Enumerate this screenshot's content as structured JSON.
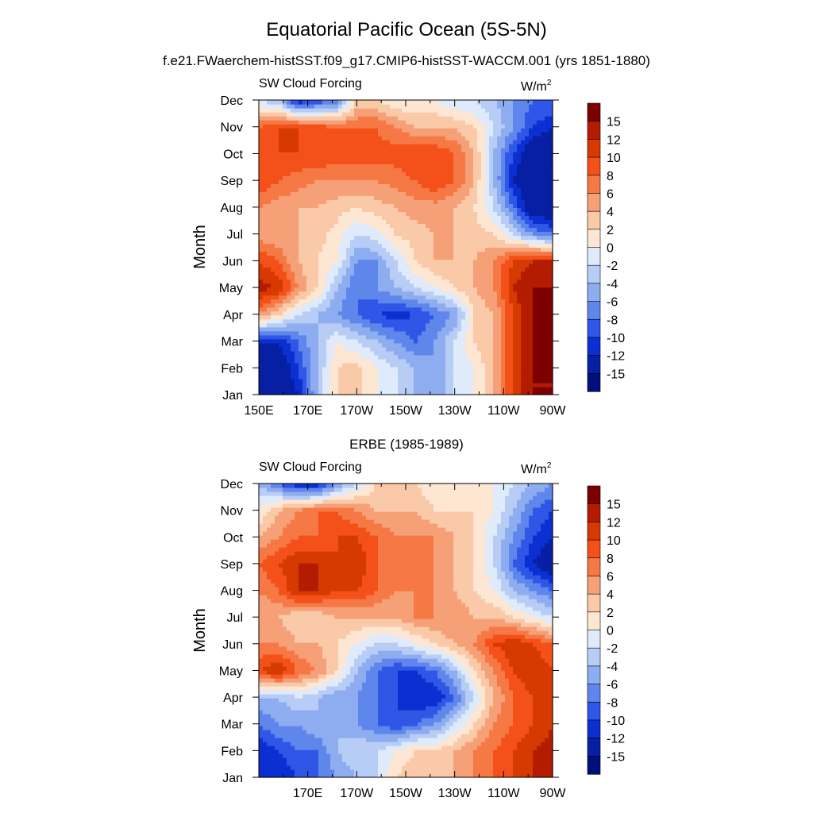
{
  "figure": {
    "title": "Equatorial Pacific Ocean (5S-5N)",
    "subtitle": "f.e21.FWaerchem-histSST.f09_g17.CMIP6-histSST-WACCM.001 (yrs 1851-1880)"
  },
  "colorbar": {
    "labels": [
      "15",
      "12",
      "10",
      "8",
      "6",
      "4",
      "2",
      "0",
      "-2",
      "-4",
      "-6",
      "-8",
      "-10",
      "-12",
      "-15"
    ],
    "colors": [
      "#7d0000",
      "#b31c00",
      "#d73a00",
      "#f4501a",
      "#f57845",
      "#f6a078",
      "#f9c9a8",
      "#fde6d2",
      "#dfeafb",
      "#b8cdf6",
      "#8eacf0",
      "#5f86eb",
      "#2f56e6",
      "#0b2fd0",
      "#061fa3",
      "#000f7a"
    ]
  },
  "chart_data": [
    {
      "type": "heatmap",
      "title": "",
      "panel_label": "SW Cloud Forcing",
      "units": "W/m",
      "units_sup": "2",
      "ylabel": "Month",
      "x_ticks": [
        "150E",
        "170E",
        "170W",
        "150W",
        "130W",
        "110W",
        "90W"
      ],
      "x_values": [
        150,
        170,
        190,
        210,
        230,
        250,
        270
      ],
      "xlim": [
        150,
        270
      ],
      "y_ticks": [
        "Jan",
        "Feb",
        "Mar",
        "Apr",
        "May",
        "Jun",
        "Jul",
        "Aug",
        "Sep",
        "Oct",
        "Nov",
        "Dec"
      ],
      "z": [
        [
          -15,
          -15,
          -12,
          -4,
          2,
          3,
          0,
          -2,
          -4,
          -6,
          -2,
          0,
          4,
          10,
          15,
          15
        ],
        [
          -15,
          -15,
          -10,
          -4,
          2,
          3,
          0,
          -2,
          -4,
          -6,
          -2,
          0,
          4,
          10,
          15,
          15
        ],
        [
          -12,
          -12,
          -8,
          -4,
          0,
          -2,
          -4,
          -6,
          -8,
          -6,
          -2,
          2,
          4,
          10,
          15,
          15
        ],
        [
          6,
          2,
          -2,
          -4,
          -6,
          -8,
          -10,
          -11,
          -10,
          -8,
          -6,
          2,
          4,
          10,
          15,
          15
        ],
        [
          13,
          12,
          6,
          2,
          -4,
          -8,
          -6,
          -4,
          -2,
          0,
          2,
          4,
          6,
          12,
          15,
          15
        ],
        [
          10,
          8,
          4,
          2,
          0,
          -6,
          -6,
          -2,
          2,
          4,
          4,
          4,
          6,
          10,
          12,
          12
        ],
        [
          5,
          4,
          4,
          3,
          1,
          -2,
          -1,
          2,
          3,
          4,
          4,
          3,
          2,
          -2,
          -6,
          -8
        ],
        [
          6,
          5,
          4,
          4,
          3,
          2,
          3,
          4,
          5,
          5,
          4,
          2,
          -2,
          -8,
          -15,
          -15
        ],
        [
          10,
          8,
          7,
          6,
          6,
          6,
          6,
          7,
          8,
          10,
          8,
          4,
          -4,
          -12,
          -15,
          -15
        ],
        [
          10,
          10,
          10,
          10,
          9,
          9,
          9,
          9,
          10,
          10,
          8,
          4,
          -4,
          -10,
          -15,
          -15
        ],
        [
          8,
          10,
          10,
          9,
          8,
          8,
          8,
          6,
          4,
          4,
          4,
          2,
          -2,
          -6,
          -10,
          -12
        ],
        [
          -2,
          -4,
          -12,
          -10,
          -8,
          2,
          2,
          0,
          0,
          0,
          -2,
          -2,
          -4,
          -6,
          -8,
          -8
        ]
      ]
    },
    {
      "type": "heatmap",
      "title": "ERBE (1985-1989)",
      "panel_label": "SW Cloud Forcing",
      "units": "W/m",
      "units_sup": "2",
      "ylabel": "Month",
      "x_ticks": [
        "170E",
        "170W",
        "150W",
        "130W",
        "110W",
        "90W"
      ],
      "x_values": [
        170,
        190,
        210,
        230,
        250,
        270
      ],
      "xlim": [
        150,
        270
      ],
      "y_ticks": [
        "Jan",
        "Feb",
        "Mar",
        "Apr",
        "May",
        "Jun",
        "Jul",
        "Aug",
        "Sep",
        "Oct",
        "Nov",
        "Dec"
      ],
      "z": [
        [
          -12,
          -12,
          -10,
          -8,
          -6,
          -4,
          -2,
          2,
          4,
          4,
          4,
          6,
          8,
          10,
          12,
          13
        ],
        [
          -12,
          -10,
          -8,
          -8,
          -4,
          -2,
          -2,
          0,
          2,
          2,
          4,
          6,
          8,
          10,
          12,
          13
        ],
        [
          -8,
          -6,
          -6,
          -4,
          -4,
          -6,
          -8,
          -10,
          -8,
          -6,
          -2,
          2,
          6,
          8,
          10,
          12
        ],
        [
          -4,
          -4,
          -2,
          -4,
          -6,
          -6,
          -8,
          -10,
          -12,
          -12,
          -8,
          -2,
          4,
          8,
          10,
          10
        ],
        [
          10,
          12,
          8,
          6,
          2,
          -4,
          -8,
          -10,
          -10,
          -8,
          -4,
          2,
          6,
          10,
          12,
          10
        ],
        [
          6,
          6,
          4,
          4,
          2,
          0,
          -2,
          -2,
          0,
          2,
          4,
          6,
          10,
          12,
          10,
          8
        ],
        [
          4,
          4,
          2,
          2,
          4,
          4,
          4,
          4,
          6,
          6,
          6,
          4,
          4,
          2,
          0,
          -2
        ],
        [
          6,
          8,
          12,
          12,
          10,
          10,
          8,
          6,
          6,
          6,
          4,
          2,
          0,
          -4,
          -6,
          -8
        ],
        [
          8,
          10,
          12,
          12,
          10,
          12,
          8,
          6,
          6,
          6,
          4,
          2,
          -2,
          -8,
          -12,
          -15
        ],
        [
          4,
          6,
          8,
          8,
          10,
          10,
          8,
          6,
          6,
          6,
          4,
          2,
          -2,
          -6,
          -10,
          -12
        ],
        [
          0,
          4,
          6,
          8,
          8,
          6,
          4,
          4,
          4,
          2,
          2,
          2,
          0,
          -4,
          -8,
          -10
        ],
        [
          -4,
          -8,
          -12,
          -12,
          -6,
          -2,
          2,
          2,
          2,
          0,
          0,
          0,
          0,
          -2,
          -4,
          -6
        ]
      ]
    }
  ]
}
